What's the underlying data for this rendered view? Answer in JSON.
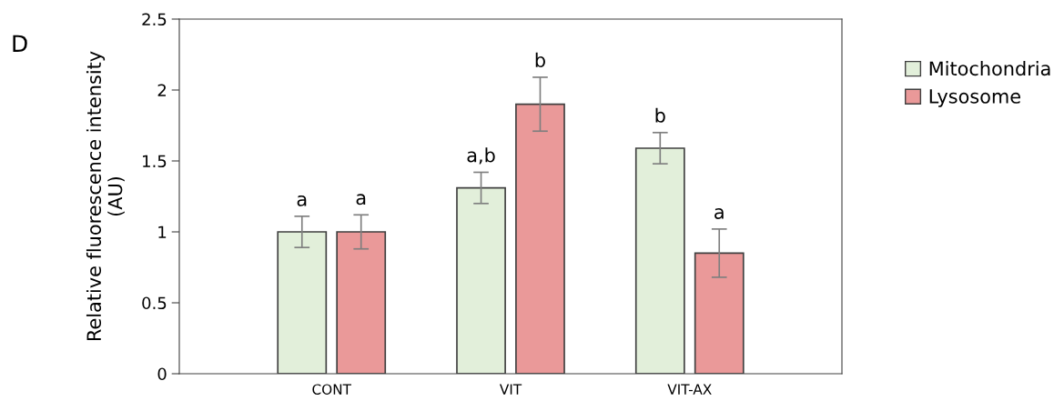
{
  "chart_data": {
    "type": "bar",
    "ylabel": "Relative fluorescence intensity\n(AU)",
    "annotations": [
      "D"
    ],
    "categories": [
      "CONT",
      "VIT",
      "VIT-AX"
    ],
    "series": [
      {
        "name": "Mitochondria",
        "color": "#e2efda",
        "values": [
          1.0,
          1.31,
          1.59
        ],
        "errors": [
          0.11,
          0.11,
          0.11
        ],
        "value_labels": [
          "a",
          "a,b",
          "b"
        ]
      },
      {
        "name": "Lysosome",
        "color": "#ea9999",
        "values": [
          1.0,
          1.9,
          0.85
        ],
        "errors": [
          0.12,
          0.19,
          0.17
        ],
        "value_labels": [
          "a",
          "b",
          "a"
        ]
      }
    ],
    "ylim": [
      0,
      2.5
    ],
    "yticks": [
      0,
      0.5,
      1,
      1.5,
      2,
      2.5
    ],
    "grid": false,
    "legend": "right"
  }
}
